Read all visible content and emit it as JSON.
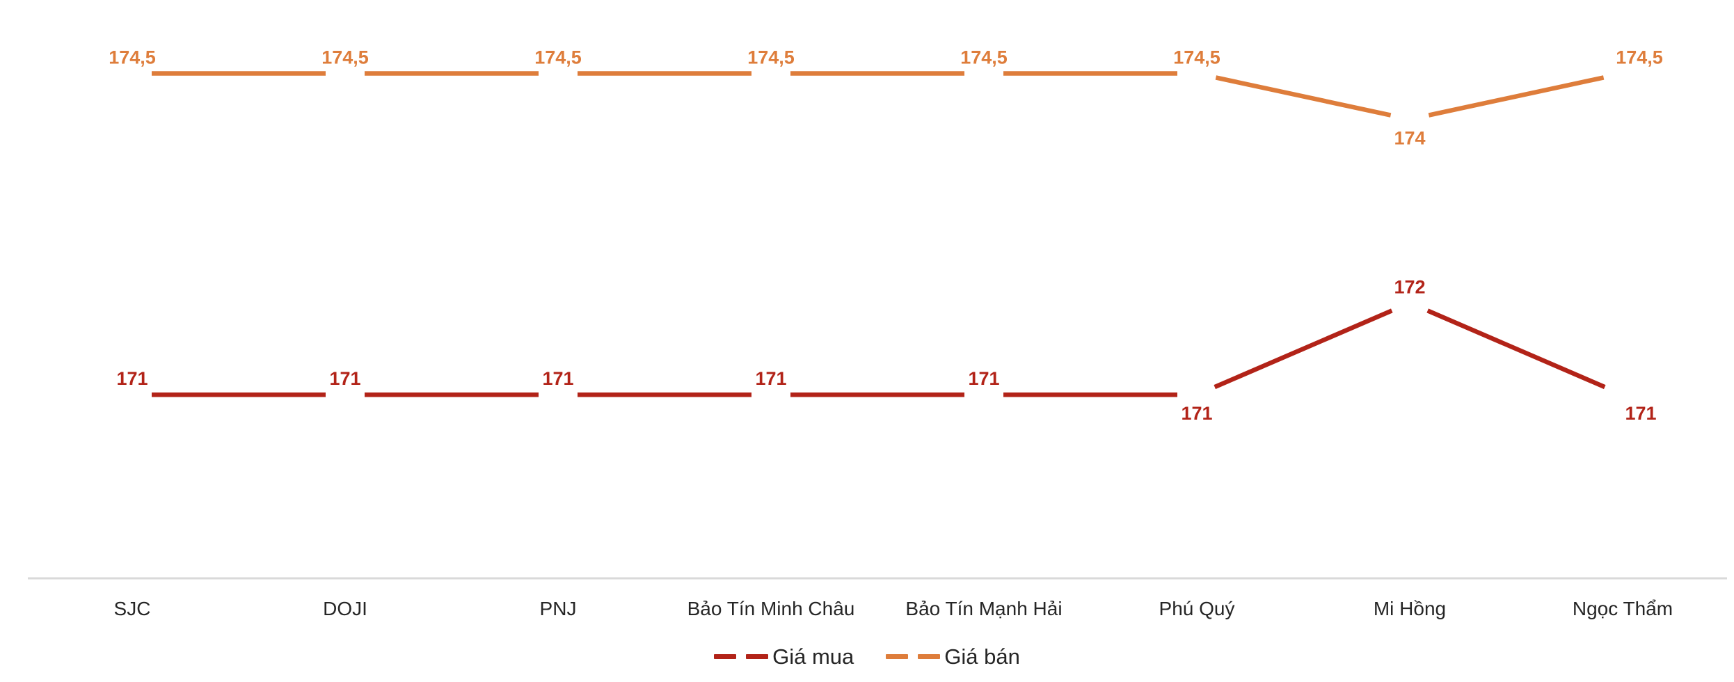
{
  "chart_data": {
    "type": "line",
    "title": "",
    "categories": [
      "SJC",
      "DOJI",
      "PNJ",
      "Bảo Tín Minh Châu",
      "Bảo Tín Mạnh Hải",
      "Phú Quý",
      "Mi Hồng",
      "Ngọc Thẩm"
    ],
    "series": [
      {
        "name": "Giá mua",
        "color": "#B22318",
        "values": [
          171,
          171,
          171,
          171,
          171,
          171,
          172,
          171
        ],
        "labels": [
          "171",
          "171",
          "171",
          "171",
          "171",
          "171",
          "172",
          "171"
        ],
        "label_positions": [
          "above",
          "above",
          "above",
          "above",
          "above",
          "below",
          "above",
          "below-right"
        ]
      },
      {
        "name": "Giá bán",
        "color": "#DE7D3B",
        "values": [
          174.5,
          174.5,
          174.5,
          174.5,
          174.5,
          174.5,
          174,
          174.5
        ],
        "labels": [
          "174,5",
          "174,5",
          "174,5",
          "174,5",
          "174,5",
          "174,5",
          "174",
          "174,5"
        ],
        "label_positions": [
          "above",
          "above",
          "above",
          "above",
          "above",
          "above",
          "below",
          "above-right"
        ]
      }
    ],
    "xlabel": "",
    "ylabel": "",
    "ylim": [
      169,
      175.3
    ],
    "value_axis_visible": false,
    "gridlines": false,
    "line_style": "dashed",
    "legend_position": "bottom",
    "axis_line_color": "#D9D9D9",
    "category_label_color": "#262626"
  }
}
